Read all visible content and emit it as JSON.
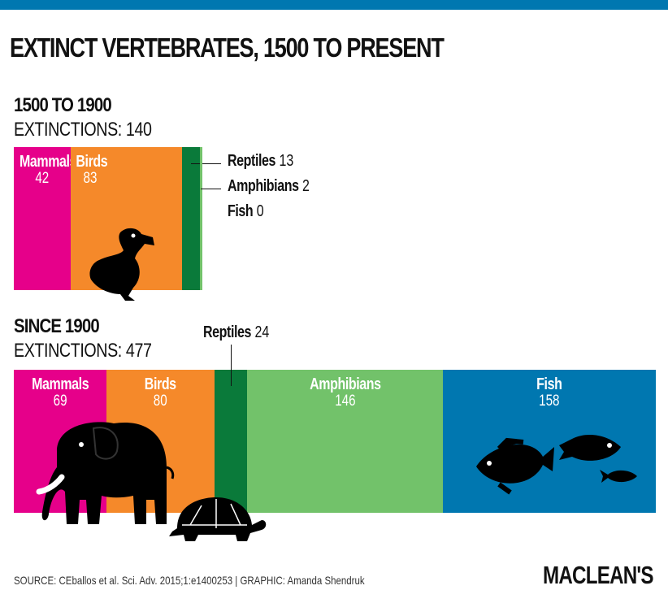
{
  "header": {
    "title": "EXTINCT VERTEBRATES, 1500 TO PRESENT",
    "brand_color": "#0077b0"
  },
  "chart_data": [
    {
      "type": "bar",
      "stacked": true,
      "orientation": "horizontal",
      "title": "1500 TO 1900",
      "subtitle": "EXTINCTIONS: 140",
      "categories": [
        "Mammals",
        "Birds",
        "Reptiles",
        "Amphibians",
        "Fish"
      ],
      "values": [
        42,
        83,
        13,
        2,
        0
      ],
      "colors": [
        "#e6008a",
        "#f5892a",
        "#0a7a3a",
        "#72c26a",
        "#0077b0"
      ]
    },
    {
      "type": "bar",
      "stacked": true,
      "orientation": "horizontal",
      "title": "SINCE 1900",
      "subtitle": "EXTINCTIONS: 477",
      "categories": [
        "Mammals",
        "Birds",
        "Reptiles",
        "Amphibians",
        "Fish"
      ],
      "values": [
        69,
        80,
        24,
        146,
        158
      ],
      "colors": [
        "#e6008a",
        "#f5892a",
        "#0a7a3a",
        "#72c26a",
        "#0077b0"
      ]
    }
  ],
  "footer": {
    "source": "SOURCE: CEballos et al. Sci. Adv. 2015;1:e1400253  |  GRAPHIC: Amanda Shendruk",
    "logo": "MACLEAN'S"
  }
}
